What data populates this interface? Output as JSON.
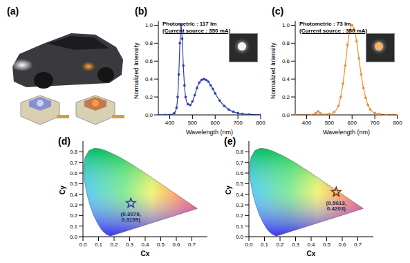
{
  "figure_a": {
    "title": "(a)"
  },
  "chart_data": [
    {
      "type": "line",
      "title": "(b)",
      "annotations": [
        "Photometric : 117 lm",
        "(Current source : 350 mA)"
      ],
      "x_label": "Wavelength (nm)",
      "y_label": "Normalized Intensity",
      "x": [
        350,
        380,
        400,
        420,
        430,
        435,
        440,
        445,
        450,
        455,
        460,
        465,
        470,
        480,
        490,
        500,
        510,
        520,
        530,
        540,
        550,
        560,
        570,
        580,
        590,
        600,
        620,
        640,
        660,
        680,
        700,
        720,
        750,
        800
      ],
      "series": [
        {
          "color": "#2b3fb0",
          "marker": "circle",
          "line_style": "solid",
          "values": [
            0,
            0,
            0,
            0.02,
            0.08,
            0.2,
            0.45,
            0.8,
            1.0,
            0.85,
            0.55,
            0.33,
            0.2,
            0.12,
            0.11,
            0.15,
            0.22,
            0.3,
            0.36,
            0.39,
            0.4,
            0.39,
            0.37,
            0.33,
            0.29,
            0.24,
            0.16,
            0.1,
            0.06,
            0.035,
            0.02,
            0.01,
            0.005,
            0
          ]
        }
      ],
      "xlim": [
        350,
        800
      ],
      "xticks": [
        400,
        500,
        600,
        700,
        800
      ],
      "ylim": [
        0,
        1.05
      ],
      "yticks": [
        {
          "value": 0,
          "label": "0.0"
        },
        {
          "value": 0.2,
          "label": "0.2"
        },
        {
          "value": 0.4,
          "label": "0.4"
        },
        {
          "value": 0.6,
          "label": "0.6"
        },
        {
          "value": 0.8,
          "label": "0.8"
        },
        {
          "value": 1.0,
          "label": "1.0"
        }
      ]
    },
    {
      "type": "line",
      "title": "(c)",
      "annotations": [
        "Photometric : 73 lm",
        "(Current source : 350 mA)"
      ],
      "x_label": "Wavelength (nm)",
      "y_label": "Normalized Intensity",
      "x": [
        350,
        420,
        440,
        450,
        460,
        480,
        500,
        520,
        540,
        550,
        560,
        570,
        580,
        590,
        600,
        610,
        620,
        630,
        640,
        650,
        660,
        670,
        680,
        700,
        720,
        750,
        800
      ],
      "series": [
        {
          "color": "#f08a30",
          "marker": "circle",
          "line_style": "solid",
          "values": [
            0,
            0,
            0.02,
            0.04,
            0.02,
            0.005,
            0.01,
            0.03,
            0.1,
            0.2,
            0.35,
            0.55,
            0.78,
            0.94,
            1.0,
            0.95,
            0.82,
            0.63,
            0.45,
            0.3,
            0.19,
            0.11,
            0.06,
            0.02,
            0.01,
            0,
            0
          ]
        }
      ],
      "xlim": [
        350,
        800
      ],
      "xticks": [
        400,
        500,
        600,
        700,
        800
      ],
      "ylim": [
        0,
        1.05
      ],
      "yticks": [
        {
          "value": 0,
          "label": "0.0"
        },
        {
          "value": 0.2,
          "label": "0.2"
        },
        {
          "value": 0.4,
          "label": "0.4"
        },
        {
          "value": 0.6,
          "label": "0.6"
        },
        {
          "value": 0.8,
          "label": "0.8"
        },
        {
          "value": 1.0,
          "label": "1.0"
        }
      ]
    },
    {
      "type": "scatter",
      "title": "(d)",
      "x_label": "Cx",
      "y_label": "Cy",
      "boundary": {
        "x": [
          0.1741,
          0.144,
          0.1241,
          0.1096,
          0.0913,
          0.0687,
          0.0454,
          0.0235,
          0.0082,
          0.0039,
          0.0139,
          0.0389,
          0.0743,
          0.1142,
          0.1547,
          0.2296,
          0.3016,
          0.3731,
          0.4441,
          0.5125,
          0.5752,
          0.627,
          0.6915,
          0.7347,
          0.1741
        ],
        "y": [
          0.005,
          0.0297,
          0.0578,
          0.0868,
          0.1327,
          0.2007,
          0.295,
          0.4127,
          0.5384,
          0.6548,
          0.7502,
          0.812,
          0.8338,
          0.8262,
          0.8059,
          0.7543,
          0.6923,
          0.6245,
          0.5547,
          0.4866,
          0.4242,
          0.3725,
          0.3083,
          0.2653,
          0.005
        ]
      },
      "x": [
        0.3079
      ],
      "y": [
        0.3159
      ],
      "value_labels": [
        "(0.3079, 0.3159)"
      ],
      "data_labels": true,
      "color": "#2b3fb0",
      "marker": "star",
      "xlim": [
        0,
        0.8
      ],
      "xticks": [
        {
          "value": 0,
          "label": "0.0"
        },
        {
          "value": 0.1,
          "label": "0.1"
        },
        {
          "value": 0.2,
          "label": "0.2"
        },
        {
          "value": 0.3,
          "label": "0.3"
        },
        {
          "value": 0.4,
          "label": "0.4"
        },
        {
          "value": 0.5,
          "label": "0.5"
        },
        {
          "value": 0.6,
          "label": "0.6"
        },
        {
          "value": 0.7,
          "label": "0.7"
        }
      ],
      "ylim": [
        0,
        0.9
      ],
      "yticks": [
        {
          "value": 0,
          "label": "0.0"
        },
        {
          "value": 0.1,
          "label": "0.1"
        },
        {
          "value": 0.2,
          "label": "0.2"
        },
        {
          "value": 0.3,
          "label": "0.3"
        },
        {
          "value": 0.4,
          "label": "0.4"
        },
        {
          "value": 0.5,
          "label": "0.5"
        },
        {
          "value": 0.6,
          "label": "0.6"
        },
        {
          "value": 0.7,
          "label": "0.7"
        },
        {
          "value": 0.8,
          "label": "0.8"
        }
      ]
    },
    {
      "type": "scatter",
      "title": "(e)",
      "x_label": "Cx",
      "y_label": "Cy",
      "boundary": {
        "x": [
          0.1741,
          0.144,
          0.1241,
          0.1096,
          0.0913,
          0.0687,
          0.0454,
          0.0235,
          0.0082,
          0.0039,
          0.0139,
          0.0389,
          0.0743,
          0.1142,
          0.1547,
          0.2296,
          0.3016,
          0.3731,
          0.4441,
          0.5125,
          0.5752,
          0.627,
          0.6915,
          0.7347,
          0.1741
        ],
        "y": [
          0.005,
          0.0297,
          0.0578,
          0.0868,
          0.1327,
          0.2007,
          0.295,
          0.4127,
          0.5384,
          0.6548,
          0.7502,
          0.812,
          0.8338,
          0.8262,
          0.8059,
          0.7543,
          0.6923,
          0.6245,
          0.5547,
          0.4866,
          0.4242,
          0.3725,
          0.3083,
          0.2653,
          0.005
        ]
      },
      "x": [
        0.5613
      ],
      "y": [
        0.4203
      ],
      "value_labels": [
        "(0.5613, 0.4203)"
      ],
      "data_labels": true,
      "color": "#6b3a1a",
      "marker": "star",
      "xlim": [
        0,
        0.8
      ],
      "xticks": [
        {
          "value": 0,
          "label": "0.0"
        },
        {
          "value": 0.1,
          "label": "0.1"
        },
        {
          "value": 0.2,
          "label": "0.2"
        },
        {
          "value": 0.3,
          "label": "0.3"
        },
        {
          "value": 0.4,
          "label": "0.4"
        },
        {
          "value": 0.5,
          "label": "0.5"
        },
        {
          "value": 0.6,
          "label": "0.6"
        },
        {
          "value": 0.7,
          "label": "0.7"
        }
      ],
      "ylim": [
        0,
        0.9
      ],
      "yticks": [
        {
          "value": 0,
          "label": "0.0"
        },
        {
          "value": 0.1,
          "label": "0.1"
        },
        {
          "value": 0.2,
          "label": "0.2"
        },
        {
          "value": 0.3,
          "label": "0.3"
        },
        {
          "value": 0.4,
          "label": "0.4"
        },
        {
          "value": 0.5,
          "label": "0.5"
        },
        {
          "value": 0.6,
          "label": "0.6"
        },
        {
          "value": 0.7,
          "label": "0.7"
        },
        {
          "value": 0.8,
          "label": "0.8"
        }
      ]
    }
  ]
}
